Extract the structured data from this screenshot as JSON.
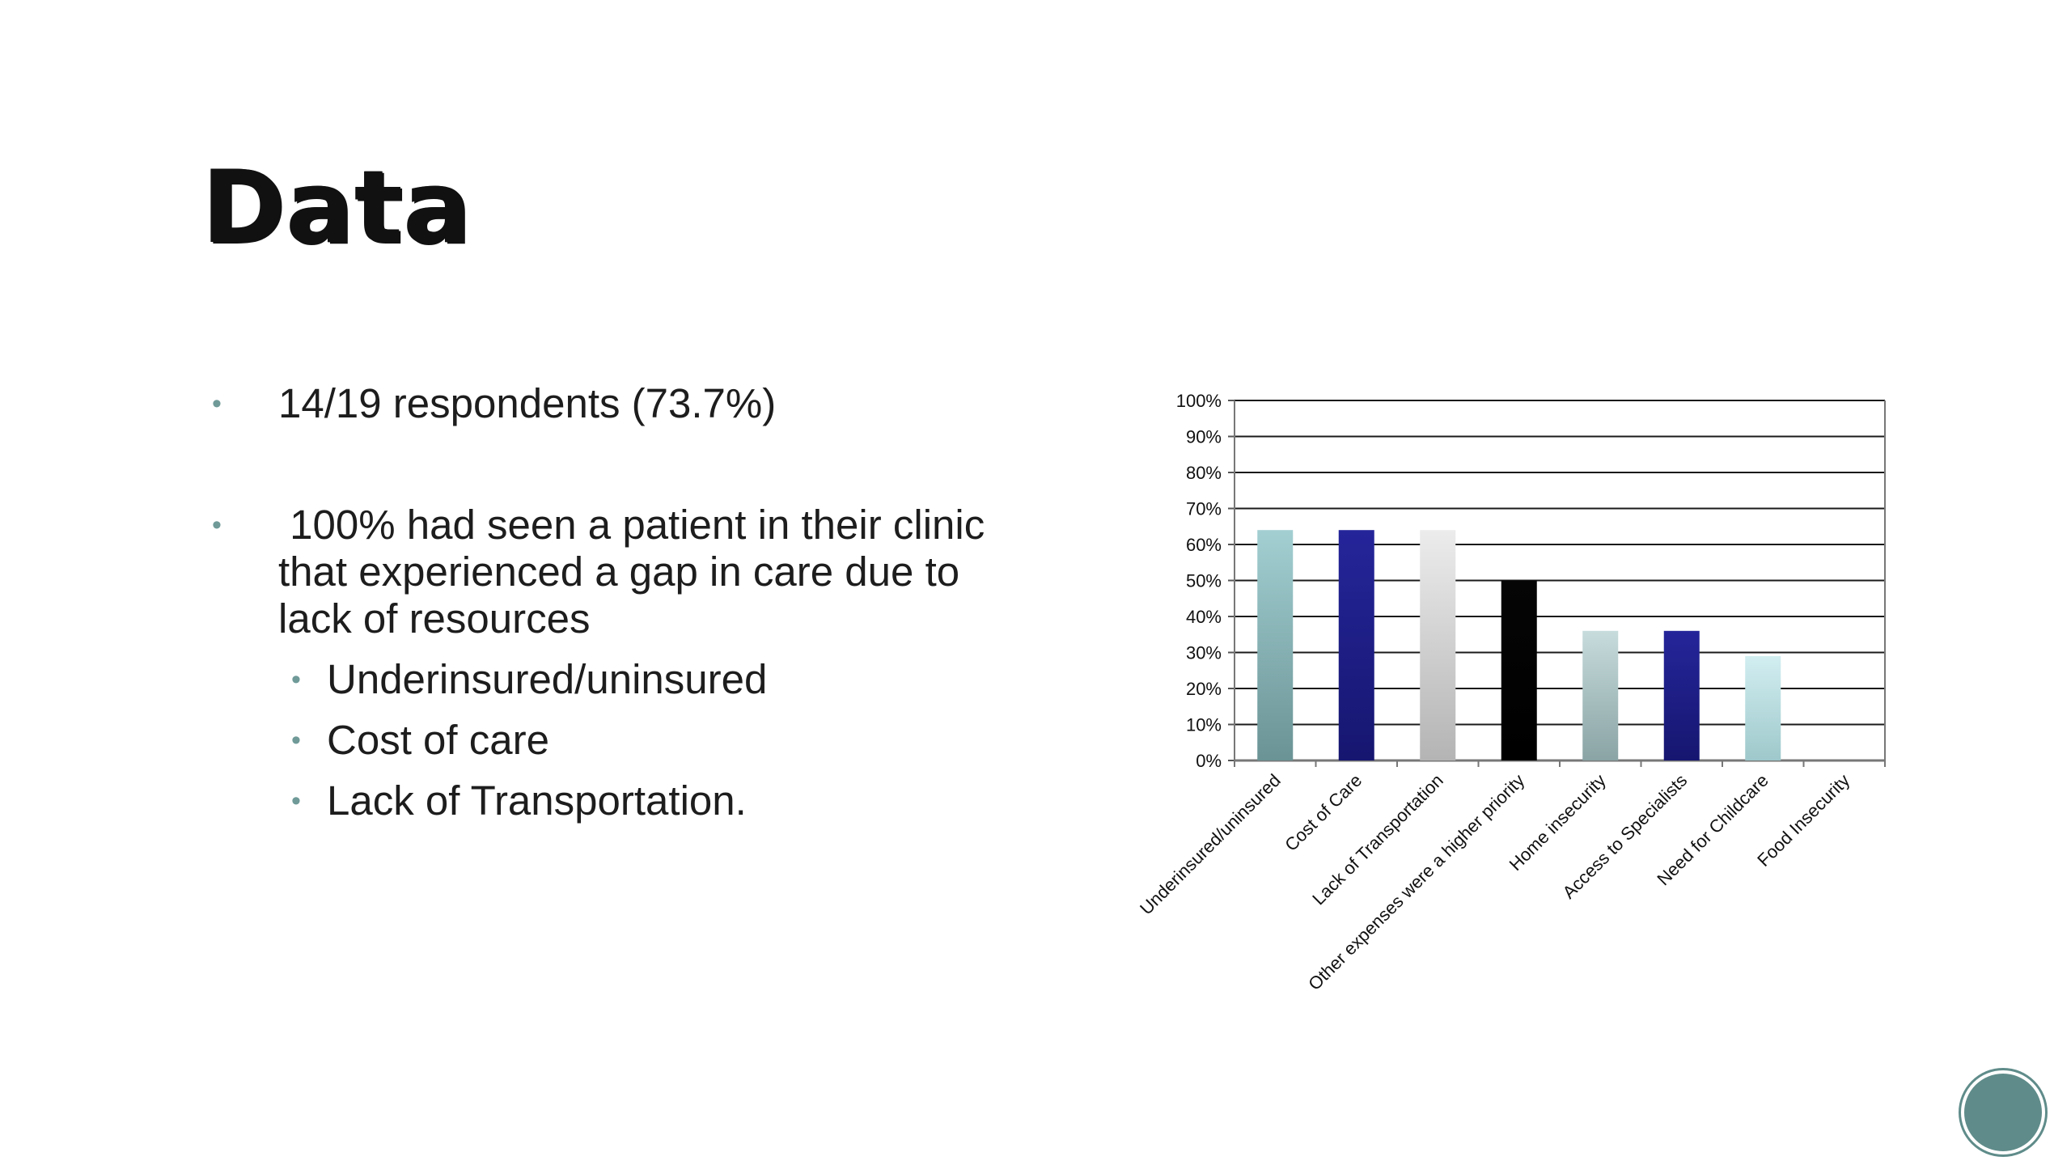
{
  "slide": {
    "title": "Data",
    "bullets": [
      {
        "level": 1,
        "text": "14/19 respondents (73.7%)"
      },
      {
        "level": 1,
        "text": " 100% had seen a patient in their clinic that experienced a gap in care due to lack of resources"
      },
      {
        "level": 2,
        "text": "Underinsured/uninsured"
      },
      {
        "level": 2,
        "text": "Cost of care"
      },
      {
        "level": 2,
        "text": "Lack of Transportation."
      }
    ],
    "bullet_glyph": "•"
  },
  "chart_data": {
    "type": "bar",
    "categories": [
      "Underinsured/uninsured",
      "Cost of Care",
      "Lack of Transportation",
      "Other expenses were a higher priority",
      "Home insecurity",
      "Access to Specialists",
      "Need for Childcare",
      "Food Insecurity"
    ],
    "values": [
      64,
      64,
      64,
      50,
      36,
      36,
      29,
      0
    ],
    "bar_colors": [
      [
        "#a3cfd2",
        "#6a9395"
      ],
      [
        "#25259a",
        "#161670"
      ],
      [
        "#ececec",
        "#b4b4b4"
      ],
      [
        "#050505",
        "#000000"
      ],
      [
        "#c7dcdc",
        "#8aa3a4"
      ],
      [
        "#25259a",
        "#161670"
      ],
      [
        "#d2eef1",
        "#9ec8cb"
      ],
      [
        "#cccccc",
        "#999999"
      ]
    ],
    "ylim": [
      0,
      100
    ],
    "yticks": [
      "0%",
      "10%",
      "20%",
      "30%",
      "40%",
      "50%",
      "60%",
      "70%",
      "80%",
      "90%",
      "100%"
    ],
    "grid": true,
    "title": "",
    "xlabel": "",
    "ylabel": ""
  },
  "decor": {
    "corner_icon": "circle-badge-icon",
    "accent": "#6f9a98"
  }
}
